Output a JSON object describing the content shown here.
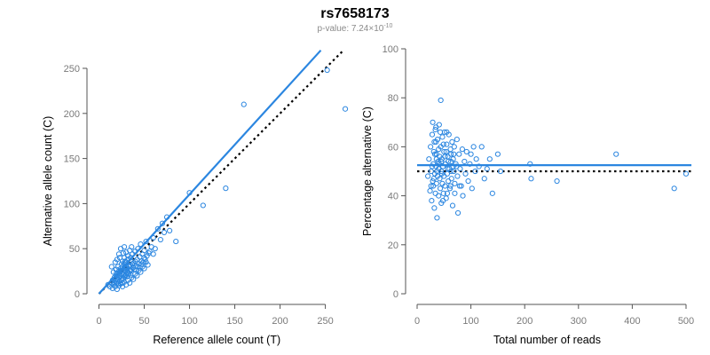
{
  "header": {
    "title": "rs7658173",
    "pvalue_label": "p-value: 7.24×10",
    "pvalue_exp": "-10"
  },
  "chart_data": [
    {
      "type": "scatter",
      "xlabel": "Reference allele count (T)",
      "ylabel": "Alternative allele count (C)",
      "xlim": [
        0,
        270
      ],
      "ylim": [
        0,
        250
      ],
      "xticks": [
        0,
        50,
        100,
        150,
        200,
        250
      ],
      "yticks": [
        0,
        50,
        100,
        150,
        200,
        250
      ],
      "fit_line": [
        [
          0,
          0
        ],
        [
          245,
          270
        ]
      ],
      "reference_line": [
        [
          0,
          0
        ],
        [
          270,
          270
        ]
      ],
      "points": [
        [
          10,
          10
        ],
        [
          12,
          8
        ],
        [
          14,
          12
        ],
        [
          15,
          15
        ],
        [
          16,
          10
        ],
        [
          17,
          18
        ],
        [
          18,
          14
        ],
        [
          19,
          22
        ],
        [
          20,
          12
        ],
        [
          20,
          20
        ],
        [
          21,
          16
        ],
        [
          22,
          25
        ],
        [
          22,
          18
        ],
        [
          23,
          14
        ],
        [
          24,
          28
        ],
        [
          24,
          20
        ],
        [
          25,
          22
        ],
        [
          25,
          17
        ],
        [
          26,
          30
        ],
        [
          26,
          12
        ],
        [
          27,
          24
        ],
        [
          28,
          19
        ],
        [
          28,
          33
        ],
        [
          29,
          26
        ],
        [
          30,
          21
        ],
        [
          30,
          35
        ],
        [
          31,
          28
        ],
        [
          32,
          23
        ],
        [
          32,
          38
        ],
        [
          33,
          30
        ],
        [
          34,
          25
        ],
        [
          35,
          40
        ],
        [
          35,
          32
        ],
        [
          36,
          27
        ],
        [
          37,
          44
        ],
        [
          38,
          34
        ],
        [
          38,
          29
        ],
        [
          40,
          36
        ],
        [
          40,
          47
        ],
        [
          41,
          31
        ],
        [
          42,
          38
        ],
        [
          43,
          50
        ],
        [
          44,
          33
        ],
        [
          45,
          41
        ],
        [
          46,
          55
        ],
        [
          47,
          36
        ],
        [
          48,
          44
        ],
        [
          50,
          40
        ],
        [
          50,
          48
        ],
        [
          52,
          58
        ],
        [
          55,
          45
        ],
        [
          58,
          52
        ],
        [
          60,
          62
        ],
        [
          62,
          50
        ],
        [
          65,
          72
        ],
        [
          68,
          60
        ],
        [
          70,
          78
        ],
        [
          72,
          68
        ],
        [
          75,
          85
        ],
        [
          78,
          70
        ],
        [
          85,
          58
        ],
        [
          100,
          112
        ],
        [
          115,
          98
        ],
        [
          140,
          117
        ],
        [
          160,
          210
        ],
        [
          252,
          248
        ],
        [
          272,
          205
        ],
        [
          14,
          30
        ],
        [
          16,
          24
        ],
        [
          18,
          35
        ],
        [
          20,
          38
        ],
        [
          21,
          30
        ],
        [
          23,
          40
        ],
        [
          25,
          33
        ],
        [
          27,
          45
        ],
        [
          29,
          36
        ],
        [
          15,
          6
        ],
        [
          18,
          8
        ],
        [
          20,
          5
        ],
        [
          22,
          9
        ],
        [
          24,
          11
        ],
        [
          26,
          8
        ],
        [
          28,
          13
        ],
        [
          30,
          10
        ],
        [
          32,
          15
        ],
        [
          34,
          12
        ],
        [
          36,
          18
        ],
        [
          38,
          16
        ],
        [
          40,
          22
        ],
        [
          42,
          20
        ],
        [
          44,
          26
        ],
        [
          46,
          24
        ],
        [
          48,
          30
        ],
        [
          50,
          28
        ],
        [
          52,
          35
        ],
        [
          54,
          32
        ],
        [
          19,
          27
        ],
        [
          21,
          23
        ],
        [
          23,
          19
        ],
        [
          25,
          26
        ],
        [
          27,
          21
        ],
        [
          29,
          29
        ],
        [
          31,
          24
        ],
        [
          33,
          31
        ],
        [
          35,
          26
        ],
        [
          37,
          33
        ],
        [
          22,
          44
        ],
        [
          24,
          50
        ],
        [
          28,
          52
        ],
        [
          30,
          46
        ],
        [
          32,
          42
        ],
        [
          34,
          48
        ],
        [
          36,
          52
        ],
        [
          26,
          36
        ],
        [
          28,
          40
        ],
        [
          30,
          30
        ],
        [
          17,
          12
        ],
        [
          19,
          16
        ],
        [
          21,
          11
        ],
        [
          23,
          24
        ],
        [
          25,
          15
        ],
        [
          27,
          17
        ],
        [
          29,
          20
        ],
        [
          31,
          19
        ],
        [
          33,
          22
        ],
        [
          35,
          21
        ],
        [
          39,
          27
        ],
        [
          41,
          26
        ],
        [
          43,
          30
        ],
        [
          45,
          29
        ],
        [
          47,
          33
        ],
        [
          49,
          35
        ],
        [
          51,
          38
        ],
        [
          53,
          42
        ],
        [
          56,
          47
        ],
        [
          60,
          44
        ]
      ]
    },
    {
      "type": "scatter",
      "xlabel": "Total number of reads",
      "ylabel": "Percentage alternative (C)",
      "xlim": [
        0,
        500
      ],
      "ylim": [
        0,
        100
      ],
      "xticks": [
        0,
        100,
        200,
        300,
        400,
        500
      ],
      "yticks": [
        0,
        20,
        40,
        60,
        80,
        100
      ],
      "fit_line": [
        [
          0,
          52.5
        ],
        [
          510,
          52.5
        ]
      ],
      "reference_line": [
        [
          0,
          50
        ],
        [
          510,
          50
        ]
      ],
      "points": [
        [
          20,
          48
        ],
        [
          22,
          55
        ],
        [
          24,
          42
        ],
        [
          25,
          60
        ],
        [
          26,
          50
        ],
        [
          27,
          38
        ],
        [
          28,
          65
        ],
        [
          29,
          46
        ],
        [
          30,
          53
        ],
        [
          30,
          44
        ],
        [
          31,
          58
        ],
        [
          32,
          35
        ],
        [
          32,
          62
        ],
        [
          33,
          49
        ],
        [
          34,
          41
        ],
        [
          34,
          67
        ],
        [
          35,
          52
        ],
        [
          36,
          45
        ],
        [
          36,
          57
        ],
        [
          37,
          31
        ],
        [
          38,
          48
        ],
        [
          38,
          63
        ],
        [
          39,
          54
        ],
        [
          40,
          40
        ],
        [
          40,
          51
        ],
        [
          41,
          69
        ],
        [
          42,
          47
        ],
        [
          42,
          56
        ],
        [
          43,
          43
        ],
        [
          44,
          60
        ],
        [
          44,
          79
        ],
        [
          45,
          50
        ],
        [
          45,
          37
        ],
        [
          46,
          55
        ],
        [
          47,
          45
        ],
        [
          47,
          64
        ],
        [
          48,
          52
        ],
        [
          49,
          41
        ],
        [
          50,
          58
        ],
        [
          50,
          48
        ],
        [
          51,
          66
        ],
        [
          52,
          44
        ],
        [
          53,
          53
        ],
        [
          54,
          39
        ],
        [
          55,
          61
        ],
        [
          56,
          49
        ],
        [
          57,
          56
        ],
        [
          58,
          46
        ],
        [
          59,
          65
        ],
        [
          60,
          51
        ],
        [
          61,
          43
        ],
        [
          62,
          59
        ],
        [
          63,
          54
        ],
        [
          64,
          47
        ],
        [
          65,
          62
        ],
        [
          66,
          36
        ],
        [
          67,
          55
        ],
        [
          68,
          50
        ],
        [
          69,
          60
        ],
        [
          70,
          45
        ],
        [
          72,
          53
        ],
        [
          74,
          63
        ],
        [
          75,
          48
        ],
        [
          76,
          33
        ],
        [
          78,
          57
        ],
        [
          80,
          51
        ],
        [
          82,
          44
        ],
        [
          84,
          59
        ],
        [
          85,
          40
        ],
        [
          88,
          54
        ],
        [
          90,
          49
        ],
        [
          92,
          58
        ],
        [
          95,
          46
        ],
        [
          98,
          53
        ],
        [
          100,
          57
        ],
        [
          102,
          43
        ],
        [
          105,
          60
        ],
        [
          108,
          50
        ],
        [
          110,
          55
        ],
        [
          115,
          52
        ],
        [
          120,
          60
        ],
        [
          125,
          47
        ],
        [
          130,
          51
        ],
        [
          135,
          55
        ],
        [
          140,
          41
        ],
        [
          150,
          57
        ],
        [
          155,
          50
        ],
        [
          210,
          53
        ],
        [
          212,
          47
        ],
        [
          260,
          46
        ],
        [
          370,
          57
        ],
        [
          478,
          43
        ],
        [
          500,
          49
        ],
        [
          28,
          52
        ],
        [
          33,
          57
        ],
        [
          37,
          50
        ],
        [
          41,
          53
        ],
        [
          46,
          49
        ],
        [
          52,
          56
        ],
        [
          57,
          51
        ],
        [
          63,
          50
        ],
        [
          68,
          57
        ],
        [
          73,
          52
        ],
        [
          26,
          44
        ],
        [
          31,
          47
        ],
        [
          36,
          55
        ],
        [
          40,
          59
        ],
        [
          45,
          54
        ],
        [
          49,
          61
        ],
        [
          54,
          58
        ],
        [
          58,
          54
        ],
        [
          63,
          57
        ],
        [
          67,
          52
        ],
        [
          29,
          70
        ],
        [
          35,
          68
        ],
        [
          43,
          66
        ],
        [
          55,
          66
        ],
        [
          35,
          62
        ],
        [
          48,
          38
        ],
        [
          56,
          41
        ],
        [
          62,
          44
        ],
        [
          70,
          41
        ],
        [
          79,
          44
        ]
      ]
    }
  ]
}
